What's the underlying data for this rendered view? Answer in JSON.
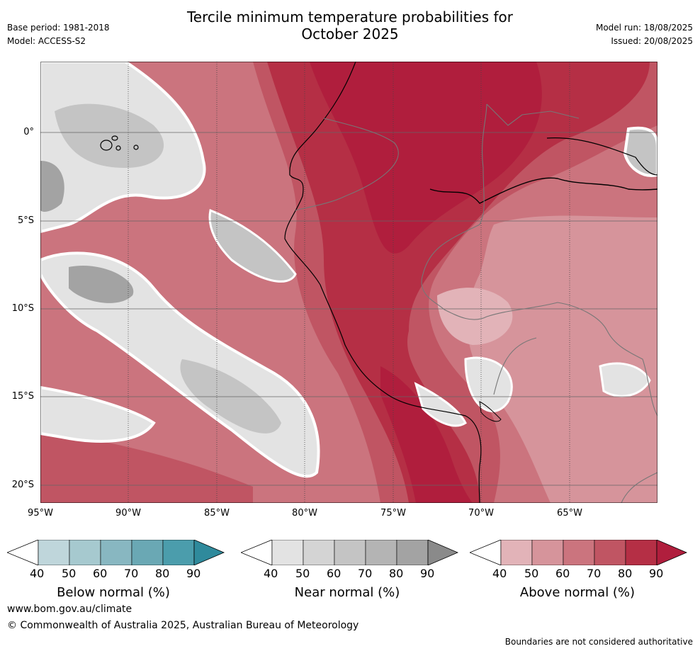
{
  "title": {
    "line1": "Tercile minimum temperature probabilities for",
    "line2": "October 2025"
  },
  "meta_left": {
    "base_period": "Base period: 1981-2018",
    "model": "Model: ACCESS-S2"
  },
  "meta_right": {
    "model_run": "Model run: 18/08/2025",
    "issued": "Issued: 20/08/2025"
  },
  "map": {
    "lat_labels": [
      "0°",
      "5°S",
      "10°S",
      "15°S",
      "20°S"
    ],
    "lon_labels": [
      "95°W",
      "90°W",
      "85°W",
      "80°W",
      "75°W",
      "70°W",
      "65°W"
    ],
    "region": "Tropical eastern Pacific / western South America"
  },
  "colorbars": [
    {
      "title": "Below normal (%)",
      "ticks": [
        "40",
        "50",
        "60",
        "70",
        "80",
        "90"
      ],
      "colors": [
        "#bfd6db",
        "#a6c9cf",
        "#88b7c1",
        "#6aa8b4",
        "#4b9dac",
        "#2f8a9c"
      ]
    },
    {
      "title": "Near normal (%)",
      "ticks": [
        "40",
        "50",
        "60",
        "70",
        "80",
        "90"
      ],
      "colors": [
        "#e3e3e3",
        "#d4d4d4",
        "#c4c4c4",
        "#b4b4b4",
        "#a3a3a3",
        "#8a8a8a"
      ]
    },
    {
      "title": "Above normal (%)",
      "ticks": [
        "40",
        "50",
        "60",
        "70",
        "80",
        "90"
      ],
      "colors": [
        "#e2b3b8",
        "#d6949b",
        "#cb747e",
        "#c05563",
        "#b52f45",
        "#b01e3d"
      ]
    }
  ],
  "footer": {
    "website": "www.bom.gov.au/climate",
    "copyright": "© Commonwealth of Australia 2025, Australian Bureau of Meteorology",
    "disclaimer": "Boundaries are not considered authoritative"
  }
}
